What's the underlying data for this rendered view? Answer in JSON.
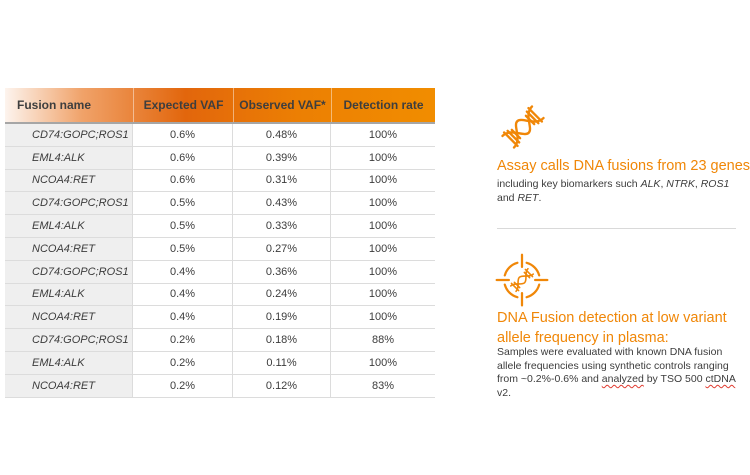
{
  "colors": {
    "accent_orange": "#f08708",
    "header_gradient": [
      "#fdf4ee",
      "#f0a269",
      "#e2660c",
      "#ec7f03",
      "#f18d00"
    ],
    "first_column_bg": "#efefef",
    "grid_line": "#dcdcdc",
    "header_rule": "#a6a6a6",
    "header_text": "#3e3e3e",
    "body_text": "#3c3c3c",
    "spellcheck_red": "#e03a2f",
    "divider": "#d9d9d9"
  },
  "table": {
    "columns": [
      "Fusion name",
      "Expected VAF",
      "Observed VAF*",
      "Detection rate"
    ],
    "rows": [
      {
        "fusion": "CD74:GOPC;ROS1",
        "expected_vaf": "0.6%",
        "observed_vaf": "0.48%",
        "detection_rate": "100%"
      },
      {
        "fusion": "EML4:ALK",
        "expected_vaf": "0.6%",
        "observed_vaf": "0.39%",
        "detection_rate": "100%"
      },
      {
        "fusion": "NCOA4:RET",
        "expected_vaf": "0.6%",
        "observed_vaf": "0.31%",
        "detection_rate": "100%"
      },
      {
        "fusion": "CD74:GOPC;ROS1",
        "expected_vaf": "0.5%",
        "observed_vaf": "0.43%",
        "detection_rate": "100%"
      },
      {
        "fusion": "EML4:ALK",
        "expected_vaf": "0.5%",
        "observed_vaf": "0.33%",
        "detection_rate": "100%"
      },
      {
        "fusion": "NCOA4:RET",
        "expected_vaf": "0.5%",
        "observed_vaf": "0.27%",
        "detection_rate": "100%"
      },
      {
        "fusion": "CD74:GOPC;ROS1",
        "expected_vaf": "0.4%",
        "observed_vaf": "0.36%",
        "detection_rate": "100%"
      },
      {
        "fusion": "EML4:ALK",
        "expected_vaf": "0.4%",
        "observed_vaf": "0.24%",
        "detection_rate": "100%"
      },
      {
        "fusion": "NCOA4:RET",
        "expected_vaf": "0.4%",
        "observed_vaf": "0.19%",
        "detection_rate": "100%"
      },
      {
        "fusion": "CD74:GOPC;ROS1",
        "expected_vaf": "0.2%",
        "observed_vaf": "0.18%",
        "detection_rate": "88%"
      },
      {
        "fusion": "EML4:ALK",
        "expected_vaf": "0.2%",
        "observed_vaf": "0.11%",
        "detection_rate": "100%"
      },
      {
        "fusion": "NCOA4:RET",
        "expected_vaf": "0.2%",
        "observed_vaf": "0.12%",
        "detection_rate": "83%"
      }
    ]
  },
  "sections": {
    "assay": {
      "icon": "dna-helix-icon",
      "heading": "Assay calls DNA fusions from 23 genes",
      "body_segments": [
        {
          "text": "including key biomarkers such "
        },
        {
          "text": "ALK",
          "style": "italic"
        },
        {
          "text": ", "
        },
        {
          "text": "NTRK",
          "style": "italic"
        },
        {
          "text": ", "
        },
        {
          "text": "ROS1",
          "style": "italic"
        },
        {
          "text": " and "
        },
        {
          "text": "RET",
          "style": "italic"
        },
        {
          "text": "."
        }
      ]
    },
    "detection": {
      "icon": "dna-target-icon",
      "heading": "DNA Fusion detection at low variant allele frequency in plasma:",
      "body_segments": [
        {
          "text": "Samples were evaluated with known DNA fusion allele frequencies using synthetic controls ranging from ~0.2%-0.6% and "
        },
        {
          "text": "analyzed",
          "style": "spellcheck"
        },
        {
          "text": " by TSO 500 "
        },
        {
          "text": "ctDNA",
          "style": "spellcheck"
        },
        {
          "text": " v2."
        }
      ]
    }
  }
}
